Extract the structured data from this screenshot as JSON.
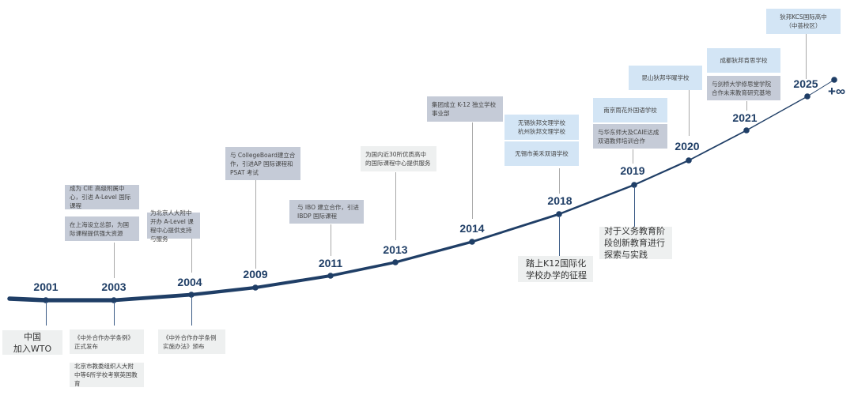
{
  "colors": {
    "line": "#1f3e66",
    "box_gray": "#c5cbd7",
    "box_blue": "#d3e5f5",
    "box_light": "#eef0f0"
  },
  "years": [
    "2001",
    "2003",
    "2004",
    "2009",
    "2011",
    "2013",
    "2014",
    "2018",
    "2019",
    "2020",
    "2021",
    "2025"
  ],
  "infinity_label": "+∞",
  "events": {
    "e2001_below": "中国\n加入WTO",
    "e2003_above_1": "成为 CIE 高级附属中心，引进 A-Level 国际课程",
    "e2003_above_2": "在上海设立总部，为国际课程提供强大资源",
    "e2003_below_1": "《中外合作办学条例》正式发布",
    "e2003_below_2": "北京市教委组织人大附中等6所学校考察英国教育",
    "e2004_above": "为北京人大附中开办 A-Level 课程中心提供支持与服务",
    "e2004_below": "《中外合作办学条例实施办法》颁布",
    "e2009_above": "与 CollegeBoard建立合作，引进AP 国际课程和 PSAT 考试",
    "e2011_above": "与 IBO 建立合作，引进 IBDP 国际课程",
    "e2013_above": "为国内近30所优质高中的国际课程中心提供服务",
    "e2014_above": "集团成立 K-12 独立学校事业部",
    "e2018_above_1": "无锡狄邦文理学校\n杭州狄邦文理学校",
    "e2018_above_2": "无锡市美禾双语学校",
    "e2018_below": "踏上K12国际化学校办学的征程",
    "e2019_above_1": "南京雨花外国语学校",
    "e2019_above_2": "与华东师大及CAIE达成双语教师培训合作",
    "e2019_below": "对于义务教育阶段创新教育进行探索与实践",
    "e2020_above": "昆山狄邦华曜学校",
    "e2021_above_1": "成都狄邦肯思学校",
    "e2021_above_2": "与剑桥大学修思堂学院合作未来教育研究基地",
    "e2025_above": "狄邦KCS国际高中\n（中荟校区）"
  }
}
